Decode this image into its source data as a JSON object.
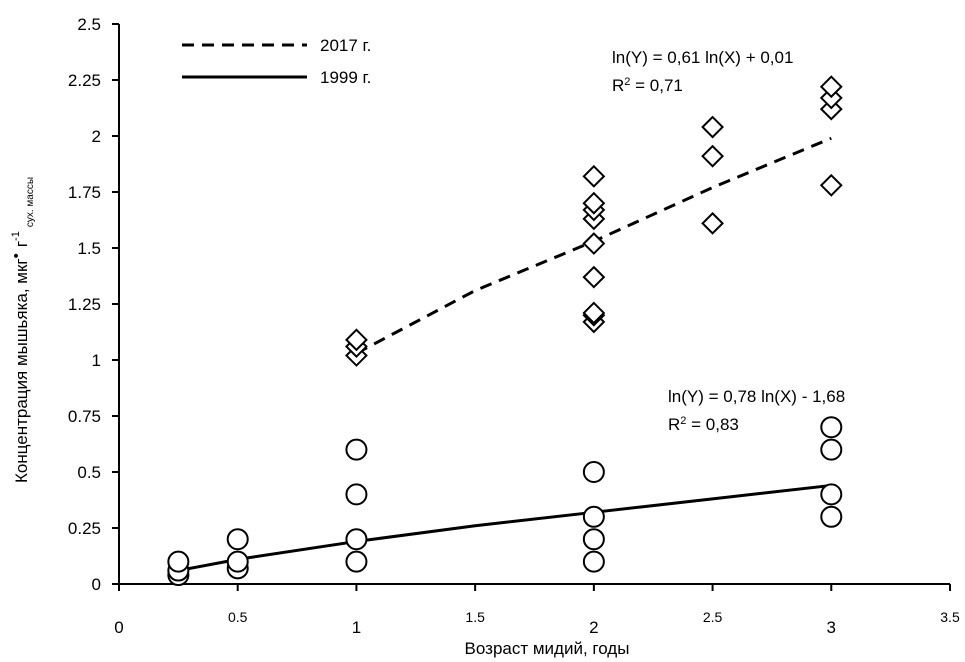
{
  "chart_data": {
    "type": "scatter",
    "xlabel": "Возраст мидий, годы",
    "ylabel": {
      "main": "Концентрация мышьяка, мкг",
      "dot": "•",
      "unit": "г",
      "exp": "-1",
      "sub": "сух. массы"
    },
    "xlim": [
      0,
      3.5
    ],
    "ylim": [
      0,
      2.5
    ],
    "x_ticks": [
      "0",
      "0.5",
      "1",
      "1.5",
      "2",
      "2.5",
      "3",
      "3.5"
    ],
    "y_ticks": [
      "0",
      "0.25",
      "0.5",
      "0.75",
      "1",
      "1.25",
      "1.5",
      "1.75",
      "2",
      "2.25",
      "2.5"
    ],
    "grid": false,
    "legend_position": "top-left",
    "series": [
      {
        "name": "2017 г.",
        "marker": "diamond",
        "line_style": "dashed",
        "points": [
          [
            1,
            1.02
          ],
          [
            1,
            1.06
          ],
          [
            1,
            1.09
          ],
          [
            2,
            1.17
          ],
          [
            2,
            1.2
          ],
          [
            2,
            1.21
          ],
          [
            2,
            1.37
          ],
          [
            2,
            1.52
          ],
          [
            2,
            1.63
          ],
          [
            2,
            1.67
          ],
          [
            2,
            1.7
          ],
          [
            2,
            1.82
          ],
          [
            2.5,
            1.61
          ],
          [
            2.5,
            1.91
          ],
          [
            2.5,
            2.04
          ],
          [
            3,
            1.78
          ],
          [
            3,
            2.12
          ],
          [
            3,
            2.17
          ],
          [
            3,
            2.22
          ]
        ],
        "trend": {
          "x": [
            1,
            1.5,
            2,
            2.5,
            3
          ],
          "y": [
            1.03,
            1.31,
            1.53,
            1.77,
            1.99
          ]
        },
        "equation": "ln(Y) = 0,61  ln(X) + 0,01",
        "r2": {
          "prefix": "R",
          "sup": "2",
          "rest": " = 0,71"
        }
      },
      {
        "name": "1999 г.",
        "marker": "circle",
        "line_style": "solid",
        "points": [
          [
            0.25,
            0.04
          ],
          [
            0.25,
            0.06
          ],
          [
            0.25,
            0.1
          ],
          [
            0.5,
            0.07
          ],
          [
            0.5,
            0.1
          ],
          [
            0.5,
            0.2
          ],
          [
            1,
            0.1
          ],
          [
            1,
            0.2
          ],
          [
            1,
            0.4
          ],
          [
            1,
            0.6
          ],
          [
            2,
            0.1
          ],
          [
            2,
            0.2
          ],
          [
            2,
            0.3
          ],
          [
            2,
            0.5
          ],
          [
            3,
            0.3
          ],
          [
            3,
            0.4
          ],
          [
            3,
            0.6
          ],
          [
            3,
            0.7
          ]
        ],
        "trend": {
          "x": [
            0.25,
            0.5,
            1,
            1.5,
            2,
            2.5,
            3
          ],
          "y": [
            0.06,
            0.11,
            0.19,
            0.26,
            0.32,
            0.38,
            0.44
          ]
        },
        "equation": "ln(Y) = 0,78  ln(X) - 1,68",
        "r2": {
          "prefix": "R",
          "sup": "2",
          "rest": " = 0,83"
        }
      }
    ]
  }
}
